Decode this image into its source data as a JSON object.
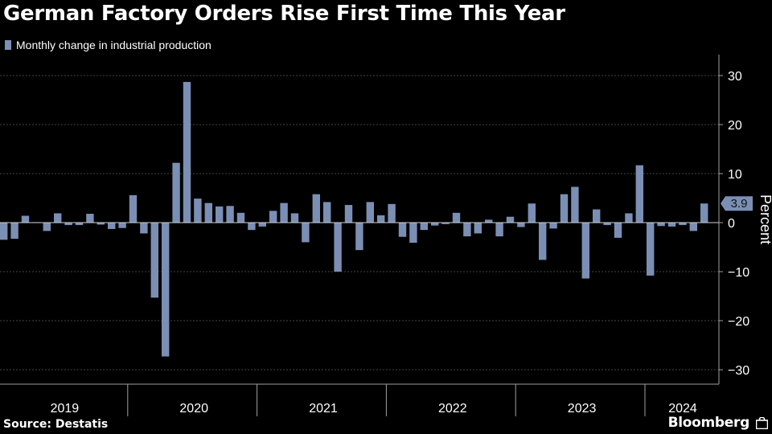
{
  "title": "German Factory Orders Rise First Time This Year",
  "legend_label": "Monthly change in industrial production",
  "source": "Source: Destatis",
  "brand": "Bloomberg",
  "colors": {
    "bar": "#7b8fb5",
    "grid": "#5a5a5a",
    "axis": "#a0a0a0",
    "text": "#ffffff"
  },
  "chart_data": {
    "type": "bar",
    "ylabel": "Percent",
    "ylim": [
      -35,
      35
    ],
    "yticks": [
      30,
      20,
      10,
      0,
      -10,
      -20,
      -30
    ],
    "last_value_label": "3.9",
    "x_start": "2019-01",
    "years": [
      "2019",
      "2020",
      "2021",
      "2022",
      "2023",
      "2024"
    ],
    "values": [
      -3.5,
      -3.3,
      1.4,
      0.1,
      -1.7,
      1.9,
      -0.5,
      -0.5,
      1.8,
      -0.4,
      -1.3,
      -1.1,
      5.6,
      -2.2,
      -15.3,
      -27.3,
      12.2,
      28.7,
      4.9,
      4.0,
      3.3,
      3.4,
      2.0,
      -1.5,
      -0.8,
      2.4,
      4.0,
      1.9,
      -4.0,
      5.8,
      4.2,
      -10.0,
      3.6,
      -5.6,
      4.2,
      1.5,
      3.8,
      -2.9,
      -4.1,
      -1.5,
      -0.6,
      -0.3,
      2.0,
      -2.8,
      -2.2,
      0.6,
      -2.8,
      1.2,
      -0.9,
      3.9,
      -7.6,
      -1.2,
      5.8,
      7.3,
      -11.4,
      2.7,
      -0.5,
      -3.1,
      1.9,
      11.7,
      -10.8,
      -0.7,
      -0.8,
      -0.5,
      -1.7,
      3.9
    ]
  }
}
